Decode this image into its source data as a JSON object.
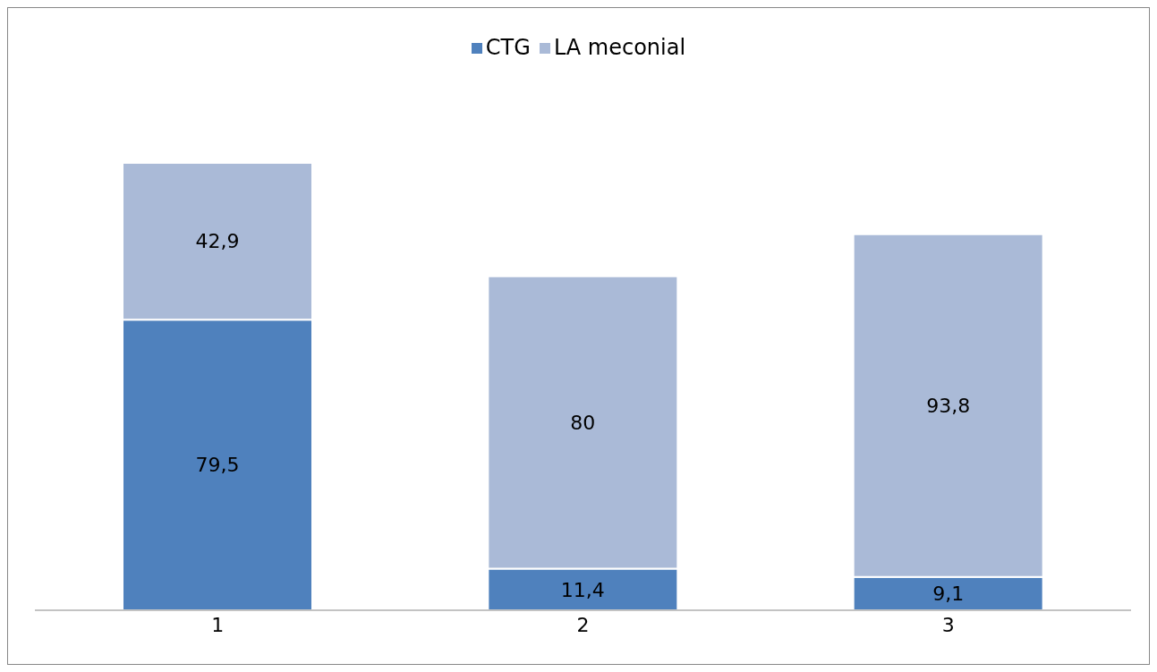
{
  "chart_data": {
    "type": "bar",
    "stacked": true,
    "categories": [
      "1",
      "2",
      "3"
    ],
    "legend": "top",
    "grid": false,
    "series": [
      {
        "name": "CTG",
        "color": "#4f81bd",
        "values": [
          79.5,
          11.4,
          9.1
        ],
        "value_labels": [
          "79,5",
          "11,4",
          "9,1"
        ]
      },
      {
        "name": "LA meconial",
        "color": "#aabad7",
        "values": [
          42.9,
          80,
          93.8
        ],
        "value_labels": [
          "42,9",
          "80",
          "93,8"
        ]
      }
    ]
  }
}
